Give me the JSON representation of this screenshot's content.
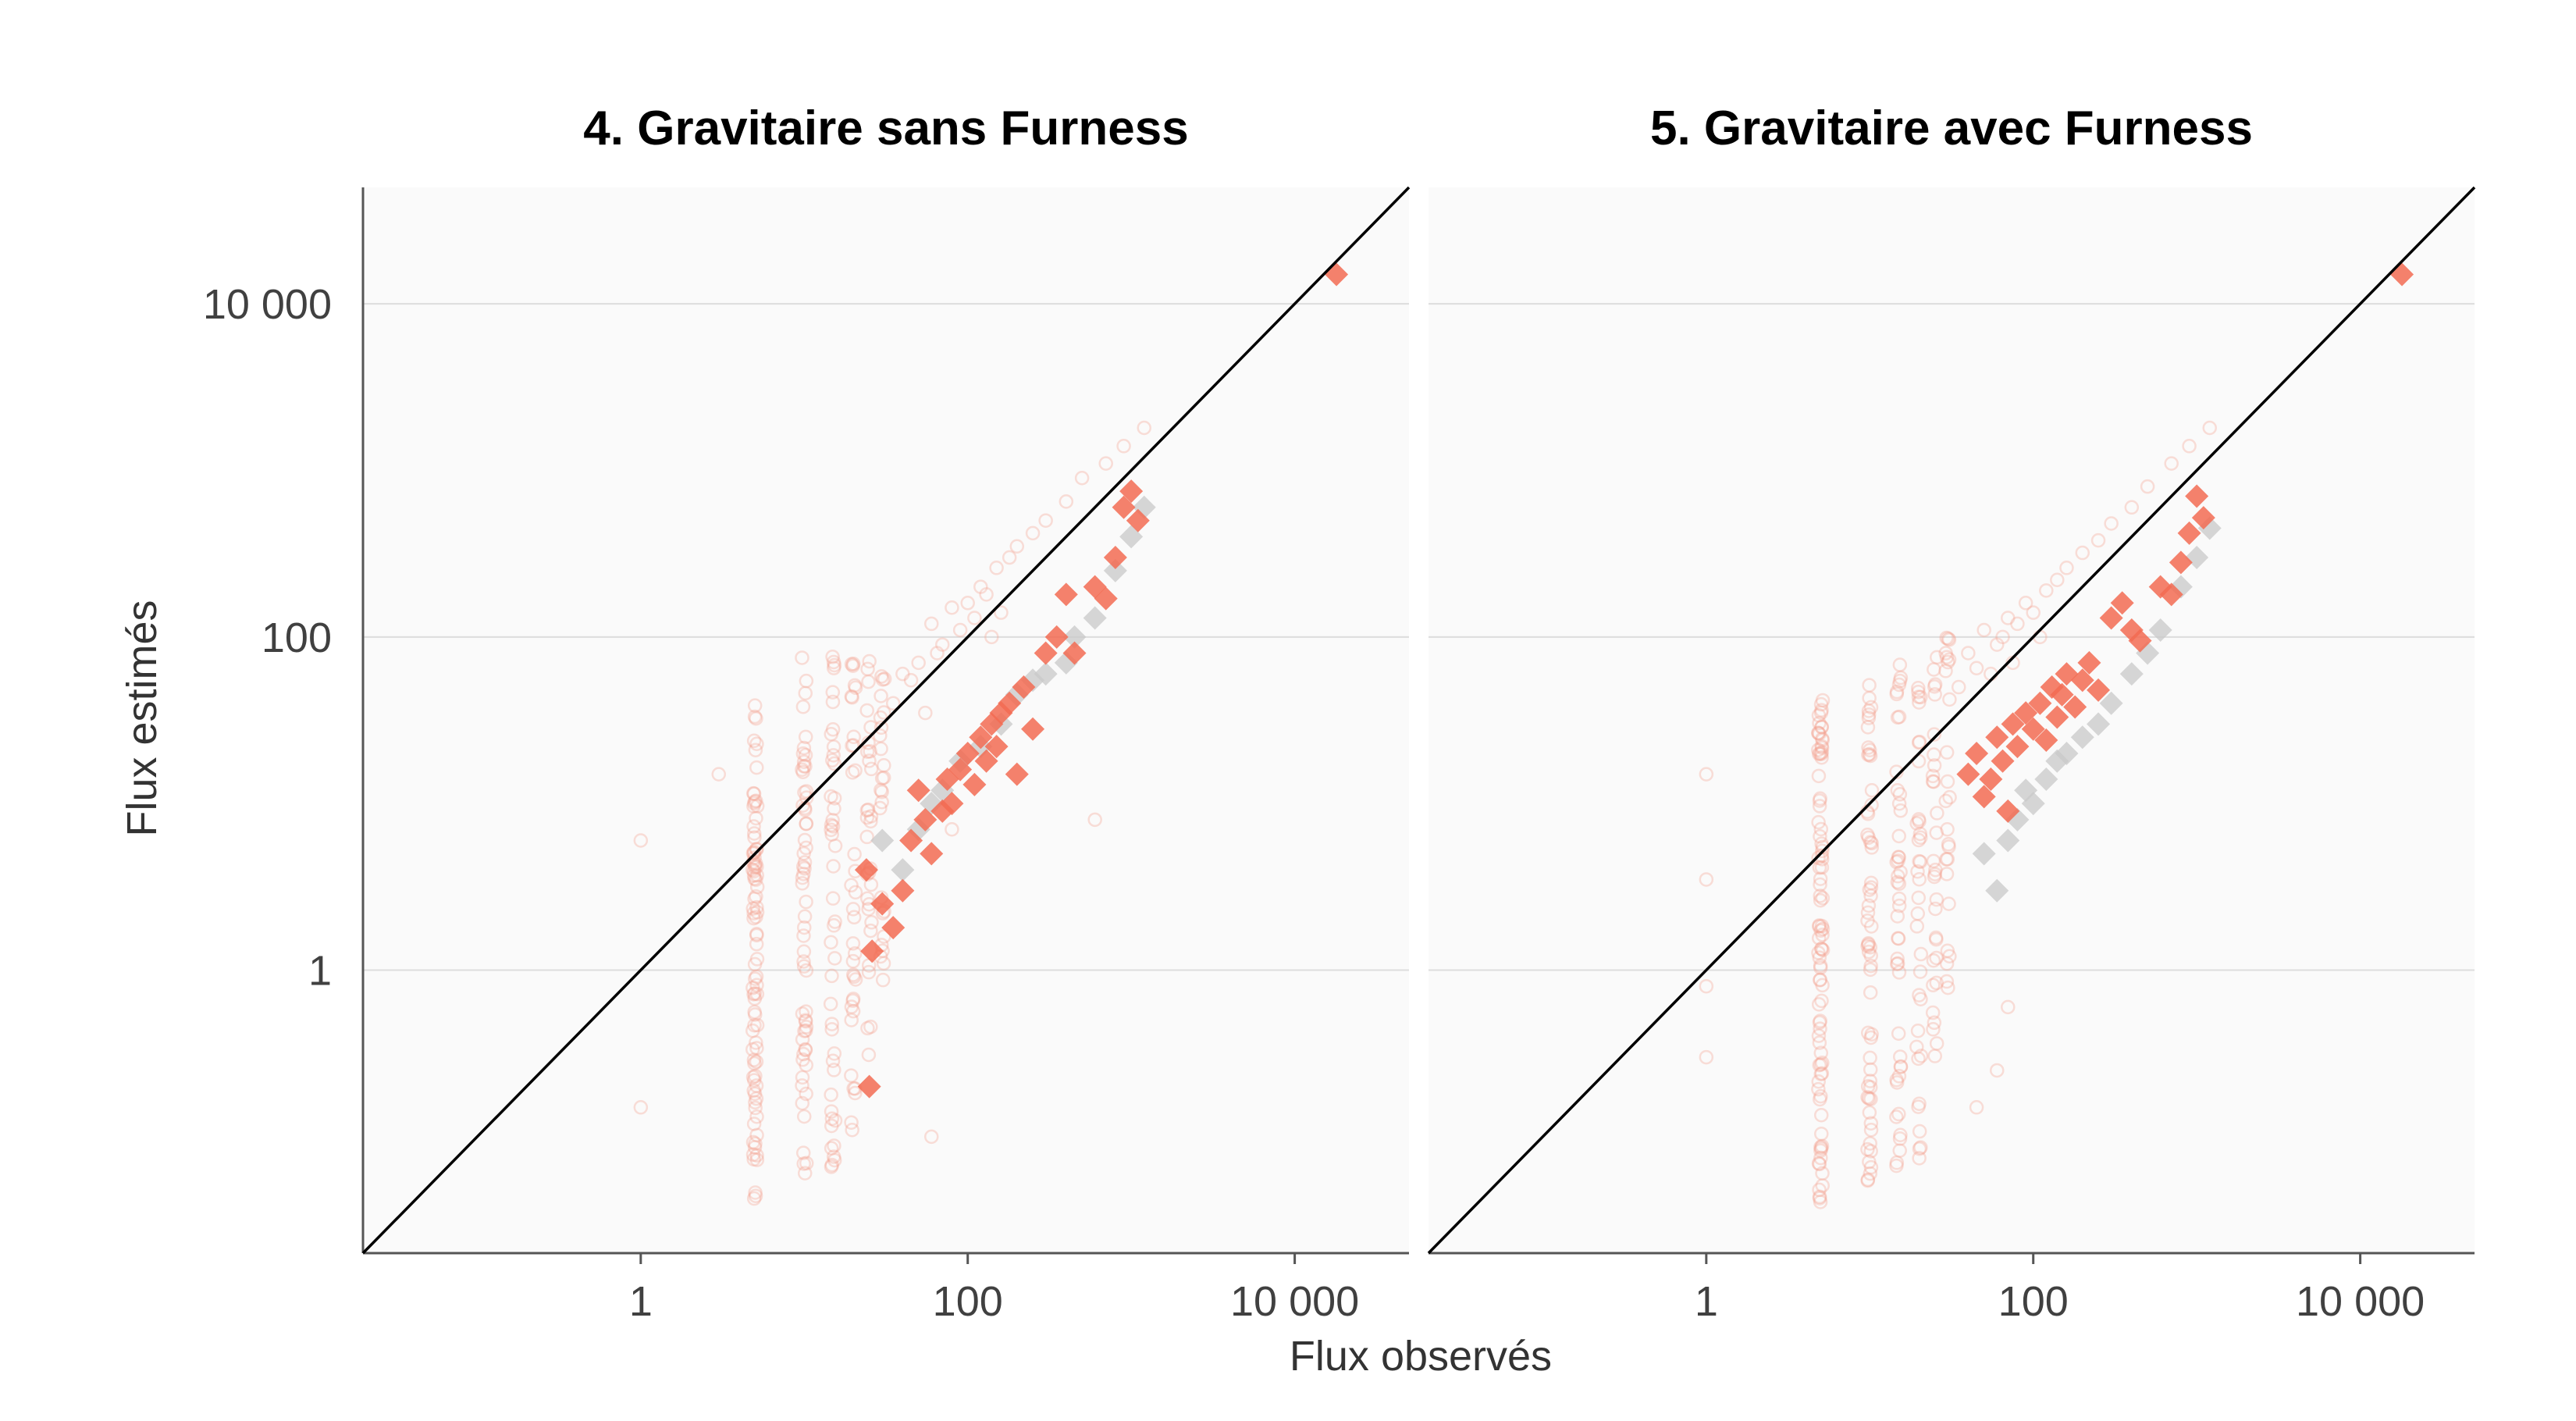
{
  "chart_data": {
    "type": "scatter",
    "scale": "log",
    "xlabel": "Flux observés",
    "ylabel": "Flux estimés",
    "xlim": [
      0.02,
      50000
    ],
    "ylim": [
      0.02,
      50000
    ],
    "x_ticks": [
      {
        "value": 1,
        "label": "1"
      },
      {
        "value": 100,
        "label": "100"
      },
      {
        "value": 10000,
        "label": "10 000"
      }
    ],
    "y_ticks": [
      {
        "value": 1,
        "label": "1"
      },
      {
        "value": 100,
        "label": "100"
      },
      {
        "value": 10000,
        "label": "10 000"
      }
    ],
    "grid": "horizontal",
    "reference_line": "y = x",
    "colors": {
      "highlight": "#f26b52",
      "muted": "#c8c8c8",
      "faint": "#f4a293",
      "panel_bg": "#fafafa",
      "grid": "#dddddd",
      "line": "#000000"
    },
    "panels": [
      {
        "title": "4. Gravitaire sans Furness",
        "scatter_columns": [
          {
            "x": 5,
            "ymin": 0.04,
            "ymax": 40,
            "density": 90
          },
          {
            "x": 10,
            "ymin": 0.05,
            "ymax": 90,
            "density": 60
          },
          {
            "x": 15,
            "ymin": 0.06,
            "ymax": 80,
            "density": 45
          },
          {
            "x": 20,
            "ymin": 0.07,
            "ymax": 90,
            "density": 35
          },
          {
            "x": 25,
            "ymin": 0.3,
            "ymax": 90,
            "density": 30
          },
          {
            "x": 30,
            "ymin": 0.5,
            "ymax": 100,
            "density": 25
          }
        ],
        "scatter_cloud": [
          {
            "x": 40,
            "y": 60
          },
          {
            "x": 50,
            "y": 70
          },
          {
            "x": 60,
            "y": 120
          },
          {
            "x": 70,
            "y": 90
          },
          {
            "x": 80,
            "y": 150
          },
          {
            "x": 90,
            "y": 110
          },
          {
            "x": 100,
            "y": 160
          },
          {
            "x": 120,
            "y": 200
          },
          {
            "x": 130,
            "y": 180
          },
          {
            "x": 150,
            "y": 260
          },
          {
            "x": 180,
            "y": 300
          },
          {
            "x": 200,
            "y": 350
          },
          {
            "x": 250,
            "y": 420
          },
          {
            "x": 300,
            "y": 500
          },
          {
            "x": 400,
            "y": 650
          },
          {
            "x": 500,
            "y": 900
          },
          {
            "x": 700,
            "y": 1100
          },
          {
            "x": 900,
            "y": 1400
          },
          {
            "x": 1200,
            "y": 1800
          },
          {
            "x": 35,
            "y": 40
          },
          {
            "x": 45,
            "y": 55
          },
          {
            "x": 55,
            "y": 35
          },
          {
            "x": 65,
            "y": 80
          },
          {
            "x": 110,
            "y": 130
          },
          {
            "x": 140,
            "y": 100
          },
          {
            "x": 160,
            "y": 140
          },
          {
            "x": 3,
            "y": 15
          },
          {
            "x": 1,
            "y": 6
          },
          {
            "x": 1,
            "y": 0.15
          },
          {
            "x": 80,
            "y": 7
          },
          {
            "x": 60,
            "y": 0.1
          },
          {
            "x": 600,
            "y": 8
          }
        ],
        "highlighted": [
          {
            "x": 24,
            "y": 4
          },
          {
            "x": 26,
            "y": 1.3
          },
          {
            "x": 25,
            "y": 0.2
          },
          {
            "x": 30,
            "y": 2.5
          },
          {
            "x": 35,
            "y": 1.8
          },
          {
            "x": 40,
            "y": 3
          },
          {
            "x": 45,
            "y": 6
          },
          {
            "x": 50,
            "y": 12
          },
          {
            "x": 55,
            "y": 8
          },
          {
            "x": 60,
            "y": 5
          },
          {
            "x": 70,
            "y": 9
          },
          {
            "x": 75,
            "y": 14
          },
          {
            "x": 80,
            "y": 10
          },
          {
            "x": 90,
            "y": 16
          },
          {
            "x": 100,
            "y": 20
          },
          {
            "x": 110,
            "y": 13
          },
          {
            "x": 120,
            "y": 25
          },
          {
            "x": 130,
            "y": 18
          },
          {
            "x": 140,
            "y": 30
          },
          {
            "x": 150,
            "y": 22
          },
          {
            "x": 160,
            "y": 35
          },
          {
            "x": 180,
            "y": 40
          },
          {
            "x": 200,
            "y": 15
          },
          {
            "x": 220,
            "y": 50
          },
          {
            "x": 250,
            "y": 28
          },
          {
            "x": 300,
            "y": 80
          },
          {
            "x": 350,
            "y": 100
          },
          {
            "x": 400,
            "y": 180
          },
          {
            "x": 450,
            "y": 80
          },
          {
            "x": 600,
            "y": 200
          },
          {
            "x": 700,
            "y": 170
          },
          {
            "x": 800,
            "y": 300
          },
          {
            "x": 900,
            "y": 600
          },
          {
            "x": 1100,
            "y": 500
          },
          {
            "x": 1000,
            "y": 750
          },
          {
            "x": 18000,
            "y": 15000
          }
        ],
        "muted": [
          {
            "x": 30,
            "y": 6
          },
          {
            "x": 40,
            "y": 4
          },
          {
            "x": 50,
            "y": 7
          },
          {
            "x": 60,
            "y": 10
          },
          {
            "x": 70,
            "y": 12
          },
          {
            "x": 90,
            "y": 18
          },
          {
            "x": 120,
            "y": 22
          },
          {
            "x": 160,
            "y": 30
          },
          {
            "x": 200,
            "y": 45
          },
          {
            "x": 250,
            "y": 55
          },
          {
            "x": 300,
            "y": 60
          },
          {
            "x": 400,
            "y": 70
          },
          {
            "x": 450,
            "y": 100
          },
          {
            "x": 600,
            "y": 130
          },
          {
            "x": 800,
            "y": 250
          },
          {
            "x": 1000,
            "y": 400
          },
          {
            "x": 1200,
            "y": 600
          }
        ]
      },
      {
        "title": "5. Gravitaire avec Furness",
        "scatter_columns": [
          {
            "x": 5,
            "ymin": 0.04,
            "ymax": 45,
            "density": 90
          },
          {
            "x": 10,
            "ymin": 0.05,
            "ymax": 60,
            "density": 60
          },
          {
            "x": 15,
            "ymin": 0.06,
            "ymax": 70,
            "density": 45
          },
          {
            "x": 20,
            "ymin": 0.07,
            "ymax": 80,
            "density": 35
          },
          {
            "x": 25,
            "ymin": 0.3,
            "ymax": 90,
            "density": 30
          },
          {
            "x": 30,
            "ymin": 0.5,
            "ymax": 120,
            "density": 25
          }
        ],
        "scatter_cloud": [
          {
            "x": 40,
            "y": 80
          },
          {
            "x": 50,
            "y": 110
          },
          {
            "x": 60,
            "y": 90
          },
          {
            "x": 70,
            "y": 130
          },
          {
            "x": 80,
            "y": 120
          },
          {
            "x": 90,
            "y": 160
          },
          {
            "x": 100,
            "y": 140
          },
          {
            "x": 120,
            "y": 190
          },
          {
            "x": 140,
            "y": 220
          },
          {
            "x": 160,
            "y": 260
          },
          {
            "x": 200,
            "y": 320
          },
          {
            "x": 250,
            "y": 380
          },
          {
            "x": 300,
            "y": 480
          },
          {
            "x": 400,
            "y": 600
          },
          {
            "x": 500,
            "y": 800
          },
          {
            "x": 700,
            "y": 1100
          },
          {
            "x": 900,
            "y": 1400
          },
          {
            "x": 1200,
            "y": 1800
          },
          {
            "x": 35,
            "y": 50
          },
          {
            "x": 45,
            "y": 65
          },
          {
            "x": 55,
            "y": 60
          },
          {
            "x": 65,
            "y": 100
          },
          {
            "x": 75,
            "y": 70
          },
          {
            "x": 110,
            "y": 100
          },
          {
            "x": 1,
            "y": 15
          },
          {
            "x": 1,
            "y": 3.5
          },
          {
            "x": 1,
            "y": 0.8
          },
          {
            "x": 1,
            "y": 0.3
          },
          {
            "x": 45,
            "y": 0.15
          },
          {
            "x": 70,
            "y": 0.6
          },
          {
            "x": 60,
            "y": 0.25
          }
        ],
        "highlighted": [
          {
            "x": 40,
            "y": 15
          },
          {
            "x": 45,
            "y": 20
          },
          {
            "x": 50,
            "y": 11
          },
          {
            "x": 55,
            "y": 14
          },
          {
            "x": 60,
            "y": 25
          },
          {
            "x": 65,
            "y": 18
          },
          {
            "x": 70,
            "y": 9
          },
          {
            "x": 75,
            "y": 30
          },
          {
            "x": 80,
            "y": 22
          },
          {
            "x": 90,
            "y": 35
          },
          {
            "x": 100,
            "y": 28
          },
          {
            "x": 110,
            "y": 40
          },
          {
            "x": 120,
            "y": 24
          },
          {
            "x": 130,
            "y": 50
          },
          {
            "x": 140,
            "y": 33
          },
          {
            "x": 150,
            "y": 45
          },
          {
            "x": 160,
            "y": 60
          },
          {
            "x": 180,
            "y": 38
          },
          {
            "x": 200,
            "y": 55
          },
          {
            "x": 220,
            "y": 70
          },
          {
            "x": 250,
            "y": 48
          },
          {
            "x": 300,
            "y": 130
          },
          {
            "x": 350,
            "y": 160
          },
          {
            "x": 400,
            "y": 110
          },
          {
            "x": 450,
            "y": 95
          },
          {
            "x": 600,
            "y": 200
          },
          {
            "x": 700,
            "y": 180
          },
          {
            "x": 800,
            "y": 280
          },
          {
            "x": 900,
            "y": 420
          },
          {
            "x": 1000,
            "y": 700
          },
          {
            "x": 1100,
            "y": 520
          },
          {
            "x": 18000,
            "y": 15000
          }
        ],
        "muted": [
          {
            "x": 50,
            "y": 5
          },
          {
            "x": 60,
            "y": 3
          },
          {
            "x": 70,
            "y": 6
          },
          {
            "x": 80,
            "y": 8
          },
          {
            "x": 90,
            "y": 12
          },
          {
            "x": 100,
            "y": 10
          },
          {
            "x": 120,
            "y": 14
          },
          {
            "x": 140,
            "y": 18
          },
          {
            "x": 160,
            "y": 20
          },
          {
            "x": 200,
            "y": 25
          },
          {
            "x": 250,
            "y": 30
          },
          {
            "x": 300,
            "y": 40
          },
          {
            "x": 400,
            "y": 60
          },
          {
            "x": 500,
            "y": 80
          },
          {
            "x": 600,
            "y": 110
          },
          {
            "x": 800,
            "y": 200
          },
          {
            "x": 1000,
            "y": 300
          },
          {
            "x": 1200,
            "y": 450
          }
        ]
      }
    ]
  }
}
